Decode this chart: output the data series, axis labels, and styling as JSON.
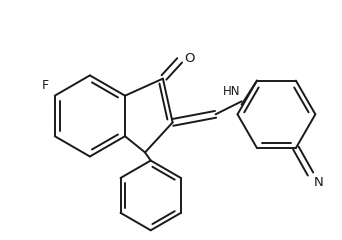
{
  "background_color": "#ffffff",
  "line_color": "#1a1a1a",
  "line_width": 1.4,
  "figsize": [
    3.42,
    2.4
  ],
  "dpi": 100,
  "xlim": [
    0.0,
    4.2
  ],
  "ylim": [
    0.05,
    2.85
  ]
}
